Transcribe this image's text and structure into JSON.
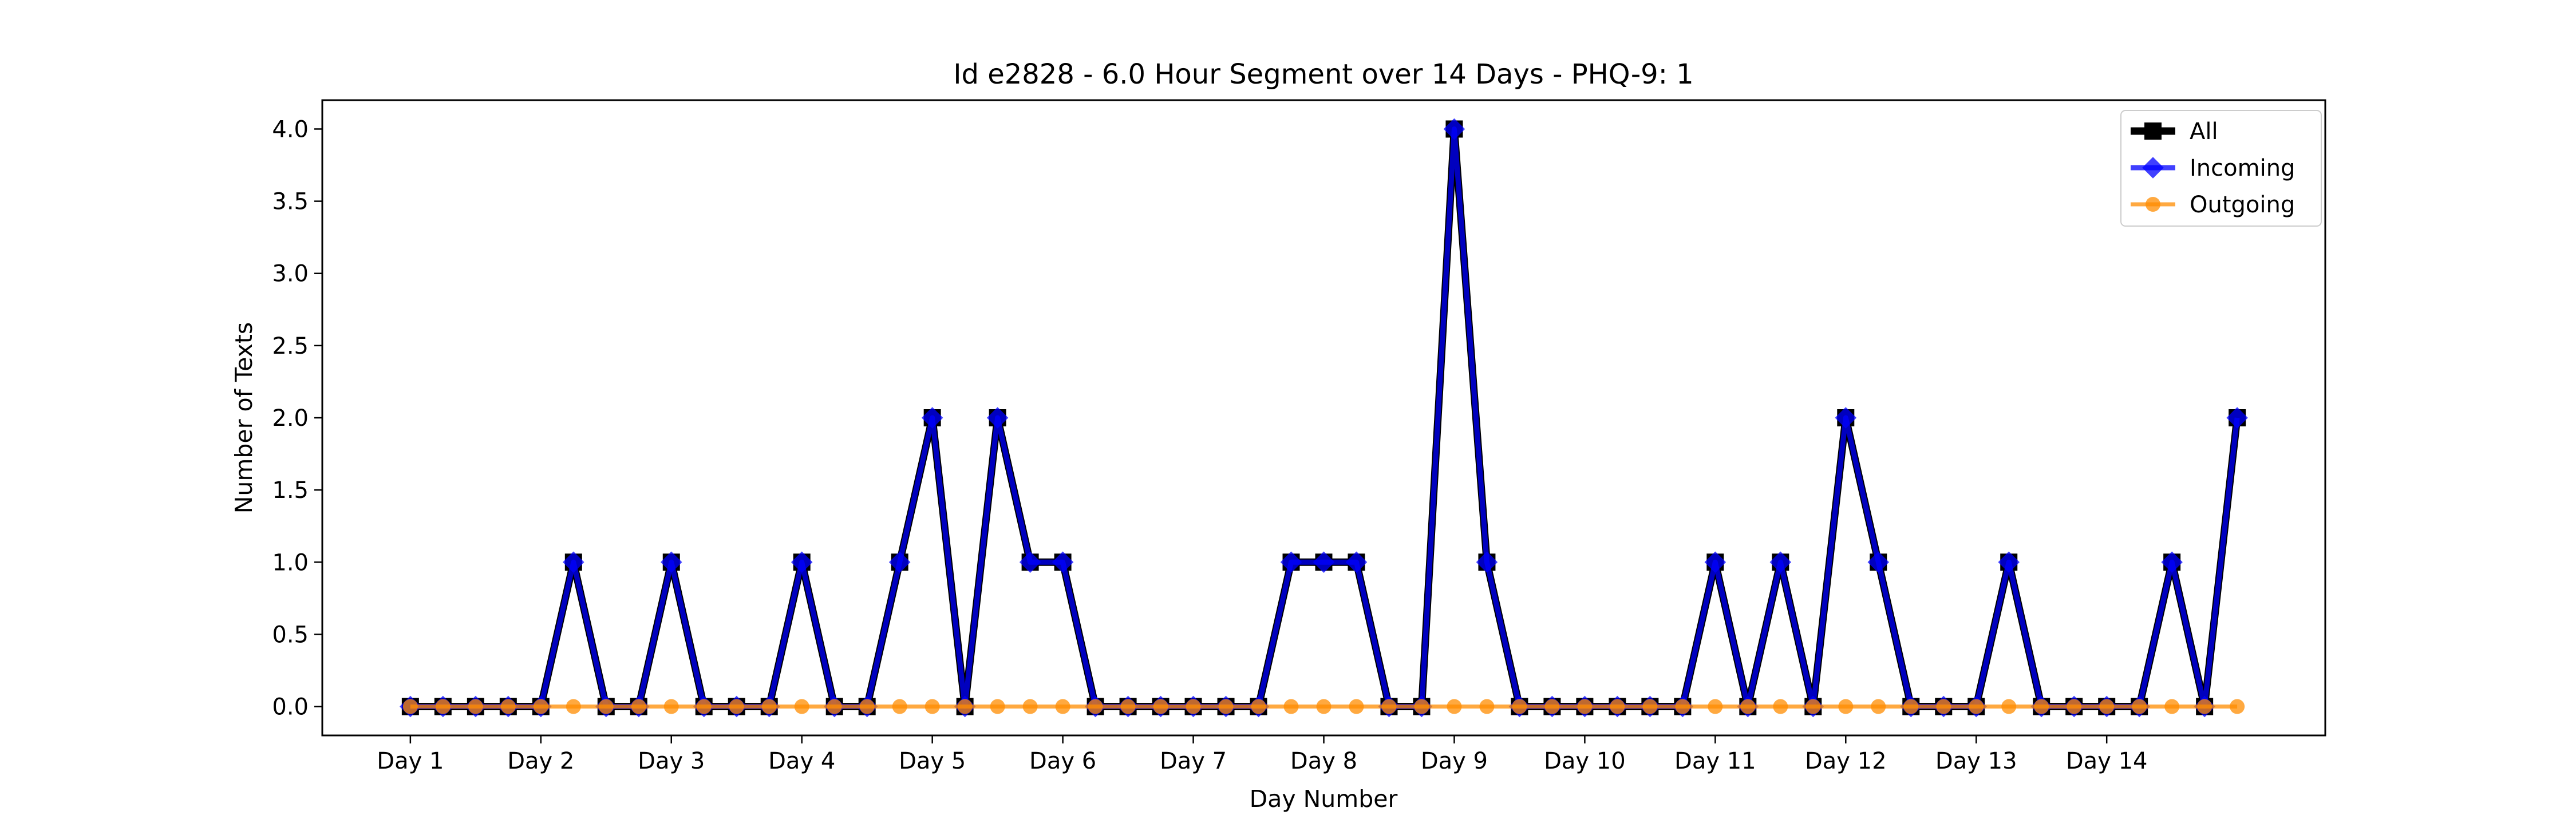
{
  "chart_data": {
    "type": "line",
    "title": "Id e2828 - 6.0 Hour Segment over 14 Days - PHQ-9: 1",
    "xlabel": "Day Number",
    "ylabel": "Number of Texts",
    "xtick_labels": [
      "Day 1",
      "Day 2",
      "Day 3",
      "Day 4",
      "Day 5",
      "Day 6",
      "Day 7",
      "Day 8",
      "Day 9",
      "Day 10",
      "Day 11",
      "Day 12",
      "Day 13",
      "Day 14"
    ],
    "x_segments_per_day": 4,
    "ylim": [
      -0.2,
      4.2
    ],
    "yticks": [
      "0.0",
      "0.5",
      "1.0",
      "1.5",
      "2.0",
      "2.5",
      "3.0",
      "3.5",
      "4.0"
    ],
    "grid": false,
    "legend_placement": "top-right",
    "series": [
      {
        "name": "All",
        "color": "#000000",
        "marker": "square",
        "values": [
          0,
          0,
          0,
          0,
          0,
          1,
          0,
          0,
          1,
          0,
          0,
          0,
          1,
          0,
          0,
          1,
          2,
          0,
          2,
          1,
          1,
          0,
          0,
          0,
          0,
          0,
          0,
          1,
          1,
          1,
          0,
          0,
          4,
          1,
          0,
          0,
          0,
          0,
          0,
          0,
          1,
          0,
          1,
          0,
          2,
          1,
          0,
          0,
          0,
          1,
          0,
          0,
          0,
          0,
          1,
          0,
          2
        ]
      },
      {
        "name": "Incoming",
        "color": "#0000ff",
        "marker": "diamond",
        "values": [
          0,
          0,
          0,
          0,
          0,
          1,
          0,
          0,
          1,
          0,
          0,
          0,
          1,
          0,
          0,
          1,
          2,
          0,
          2,
          1,
          1,
          0,
          0,
          0,
          0,
          0,
          0,
          1,
          1,
          1,
          0,
          0,
          4,
          1,
          0,
          0,
          0,
          0,
          0,
          0,
          1,
          0,
          1,
          0,
          2,
          1,
          0,
          0,
          0,
          1,
          0,
          0,
          0,
          0,
          1,
          0,
          2
        ]
      },
      {
        "name": "Outgoing",
        "color": "#ff8c00",
        "marker": "circle",
        "values": [
          0,
          0,
          0,
          0,
          0,
          0,
          0,
          0,
          0,
          0,
          0,
          0,
          0,
          0,
          0,
          0,
          0,
          0,
          0,
          0,
          0,
          0,
          0,
          0,
          0,
          0,
          0,
          0,
          0,
          0,
          0,
          0,
          0,
          0,
          0,
          0,
          0,
          0,
          0,
          0,
          0,
          0,
          0,
          0,
          0,
          0,
          0,
          0,
          0,
          0,
          0,
          0,
          0,
          0,
          0,
          0,
          0
        ]
      }
    ]
  }
}
